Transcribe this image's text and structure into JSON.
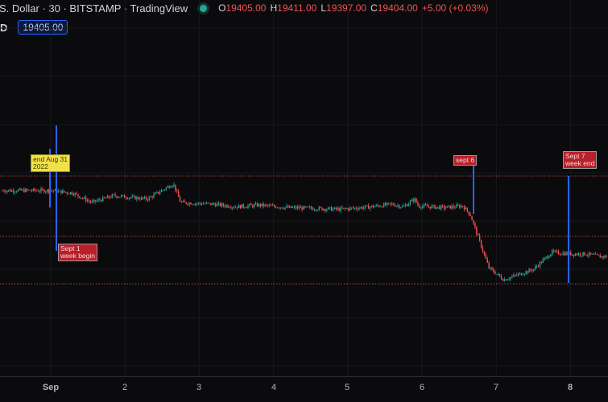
{
  "legend": {
    "title": "S. Dollar · 30 · BITSTAMP · TradingView",
    "open_key": "O",
    "open": "19405.00",
    "high_key": "H",
    "high": "19411.00",
    "low_key": "L",
    "low": "19397.00",
    "close_key": "C",
    "close": "19404.00",
    "change": "+5.00 (+0.03%)",
    "status_icon": "live-dot-icon"
  },
  "row2": {
    "label": "D",
    "price": "19405.00"
  },
  "notes": {
    "end_aug": "end Aug 31\n2022",
    "sept1": "Sept 1\nweek begin",
    "sept6": "sept 6",
    "sept7": "Sept 7\nweek end"
  },
  "x_axis": {
    "labels": [
      "Sep",
      "2",
      "3",
      "4",
      "5",
      "6",
      "7",
      "8"
    ]
  },
  "colors": {
    "background": "#0b0b0d",
    "up": "#26a69a",
    "down": "#f05350",
    "marker_line": "#2962ff",
    "dotted_line": "#e0584f"
  },
  "chart_data": {
    "type": "candlestick",
    "symbol_text": "S. Dollar · 30 · BITSTAMP",
    "x_labels": [
      "Sep",
      "2",
      "3",
      "4",
      "5",
      "6",
      "7",
      "8"
    ],
    "path": [
      [
        0,
        19840
      ],
      [
        0.3,
        19825
      ],
      [
        0.55,
        19770
      ],
      [
        0.85,
        19810
      ],
      [
        1.3,
        19790
      ],
      [
        1.65,
        19880
      ],
      [
        1.75,
        19770
      ],
      [
        2.2,
        19760
      ],
      [
        2.5,
        19745
      ],
      [
        2.8,
        19755
      ],
      [
        3.2,
        19740
      ],
      [
        3.6,
        19735
      ],
      [
        3.9,
        19730
      ],
      [
        4.3,
        19745
      ],
      [
        4.6,
        19760
      ],
      [
        4.75,
        19745
      ],
      [
        4.9,
        19790
      ],
      [
        4.95,
        19750
      ],
      [
        5.3,
        19740
      ],
      [
        5.55,
        19750
      ],
      [
        5.65,
        19700
      ],
      [
        5.9,
        19390
      ],
      [
        6.1,
        19320
      ],
      [
        6.3,
        19350
      ],
      [
        6.5,
        19380
      ],
      [
        6.75,
        19480
      ],
      [
        7,
        19470
      ],
      [
        7.2,
        19470
      ],
      [
        7.4,
        19455
      ]
    ]
  }
}
